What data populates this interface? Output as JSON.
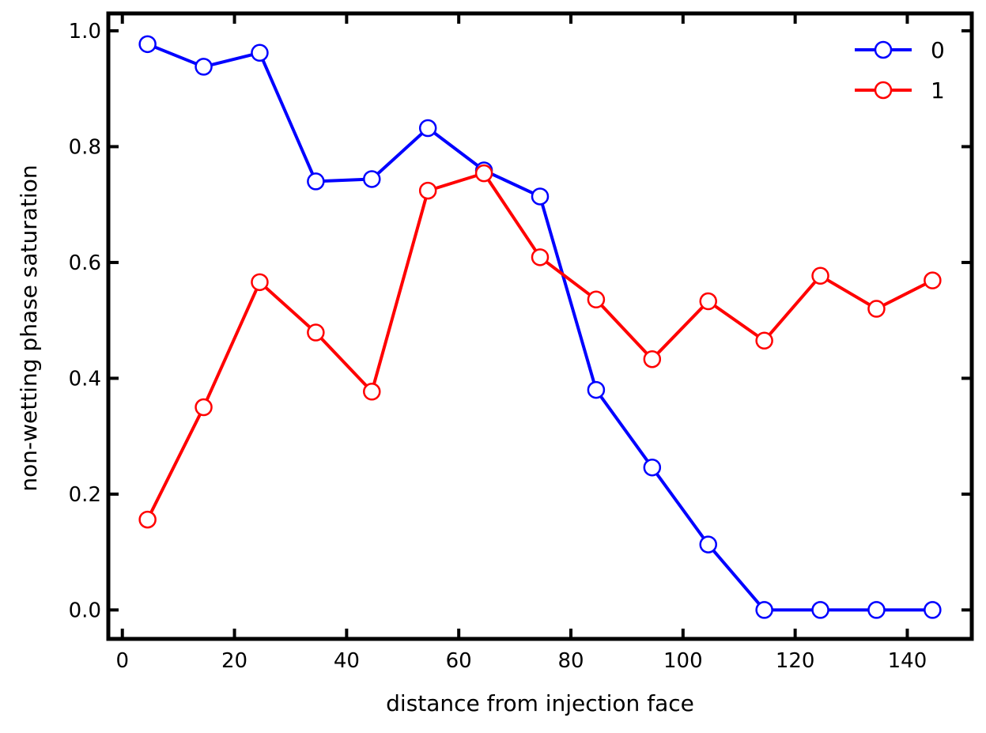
{
  "chart_data": {
    "type": "line",
    "xlabel": "distance from injection face",
    "ylabel": "non-wetting phase saturation",
    "xlim": [
      -2.5,
      151.5
    ],
    "ylim": [
      -0.05,
      1.03
    ],
    "xticks": [
      0,
      20,
      40,
      60,
      80,
      100,
      120,
      140
    ],
    "yticks": [
      0.0,
      0.2,
      0.4,
      0.6,
      0.8,
      1.0
    ],
    "x": [
      4.5,
      14.5,
      24.5,
      34.5,
      44.5,
      54.5,
      64.5,
      74.5,
      84.5,
      94.5,
      104.5,
      114.5,
      124.5,
      134.5,
      144.5
    ],
    "series": [
      {
        "name": "0",
        "color": "#0000ff",
        "values": [
          0.977,
          0.938,
          0.962,
          0.74,
          0.744,
          0.832,
          0.759,
          0.714,
          0.38,
          0.246,
          0.113,
          0.0,
          0.0,
          0.0,
          0.0
        ]
      },
      {
        "name": "1",
        "color": "#ff0000",
        "values": [
          0.156,
          0.35,
          0.566,
          0.479,
          0.377,
          0.724,
          0.754,
          0.609,
          0.536,
          0.433,
          0.533,
          0.465,
          0.577,
          0.52,
          0.569
        ]
      }
    ],
    "legend_position": "top-right",
    "grid": false,
    "marker": "open-circle"
  }
}
